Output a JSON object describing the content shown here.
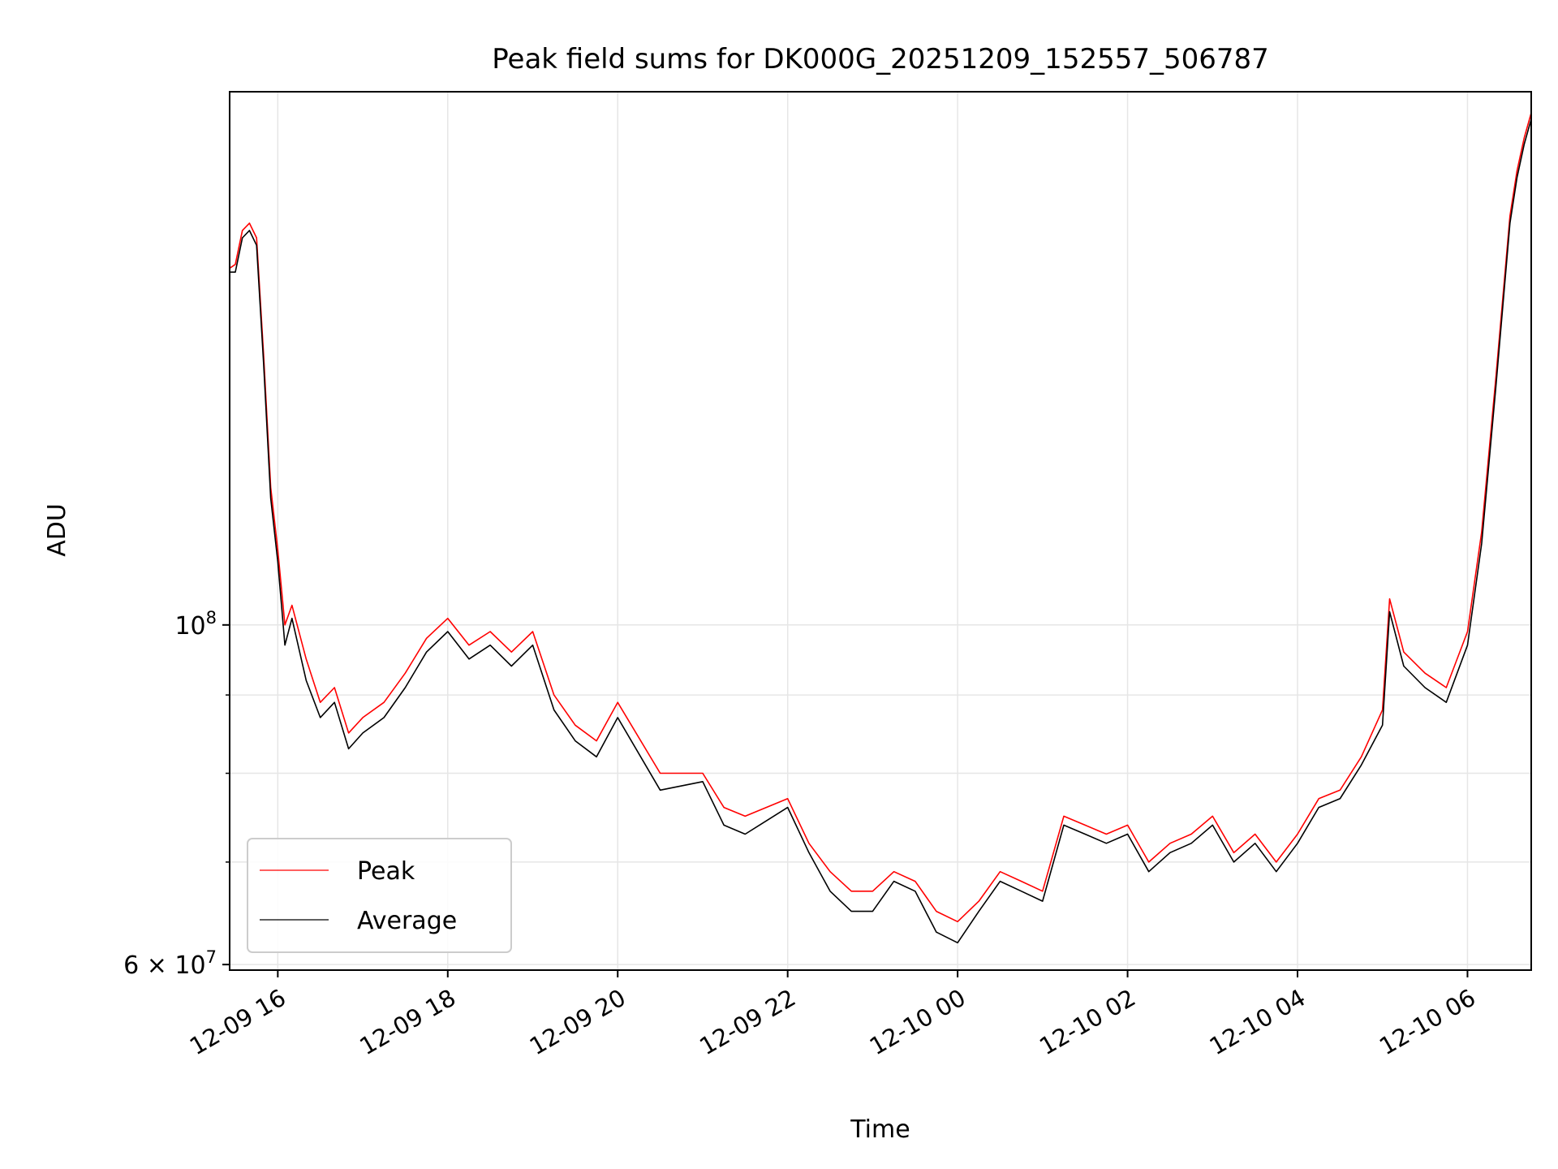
{
  "chart_data": {
    "type": "line",
    "title": "Peak field sums for DK000G_20251209_152557_506787",
    "xlabel": "Time",
    "ylabel": "ADU",
    "y_scale": "log",
    "xlim": [
      "2025-12-09 15:26",
      "2025-12-10 06:45"
    ],
    "ylim": [
      59500000,
      223000000
    ],
    "x_ticks": [
      "2025-12-09 16:00",
      "2025-12-09 18:00",
      "2025-12-09 20:00",
      "2025-12-09 22:00",
      "2025-12-10 00:00",
      "2025-12-10 02:00",
      "2025-12-10 04:00",
      "2025-12-10 06:00"
    ],
    "x_tick_labels": [
      "12-09 16",
      "12-09 18",
      "12-09 20",
      "12-09 22",
      "12-10 00",
      "12-10 02",
      "12-10 04",
      "12-10 06"
    ],
    "y_tick_labels": [
      {
        "value": 100000000,
        "mantissa": "10",
        "exponent": "8"
      },
      {
        "value": 60000000,
        "mantissa": "6 × 10",
        "exponent": "7"
      }
    ],
    "y_minor_grid": [
      70000000,
      80000000,
      90000000
    ],
    "grid": true,
    "legend_position": "lower-left",
    "x": [
      "2025-12-09 15:26",
      "2025-12-09 15:30",
      "2025-12-09 15:35",
      "2025-12-09 15:40",
      "2025-12-09 15:45",
      "2025-12-09 15:50",
      "2025-12-09 15:55",
      "2025-12-09 16:00",
      "2025-12-09 16:05",
      "2025-12-09 16:10",
      "2025-12-09 16:20",
      "2025-12-09 16:30",
      "2025-12-09 16:40",
      "2025-12-09 16:50",
      "2025-12-09 17:00",
      "2025-12-09 17:15",
      "2025-12-09 17:30",
      "2025-12-09 17:45",
      "2025-12-09 18:00",
      "2025-12-09 18:15",
      "2025-12-09 18:30",
      "2025-12-09 18:45",
      "2025-12-09 19:00",
      "2025-12-09 19:15",
      "2025-12-09 19:30",
      "2025-12-09 19:45",
      "2025-12-09 20:00",
      "2025-12-09 20:30",
      "2025-12-09 21:00",
      "2025-12-09 21:15",
      "2025-12-09 21:30",
      "2025-12-09 22:00",
      "2025-12-09 22:15",
      "2025-12-09 22:30",
      "2025-12-09 22:45",
      "2025-12-09 23:00",
      "2025-12-09 23:15",
      "2025-12-09 23:30",
      "2025-12-09 23:45",
      "2025-12-10 00:00",
      "2025-12-10 00:15",
      "2025-12-10 00:30",
      "2025-12-10 00:45",
      "2025-12-10 01:00",
      "2025-12-10 01:15",
      "2025-12-10 01:30",
      "2025-12-10 01:45",
      "2025-12-10 02:00",
      "2025-12-10 02:15",
      "2025-12-10 02:30",
      "2025-12-10 02:45",
      "2025-12-10 03:00",
      "2025-12-10 03:15",
      "2025-12-10 03:30",
      "2025-12-10 03:45",
      "2025-12-10 04:00",
      "2025-12-10 04:15",
      "2025-12-10 04:30",
      "2025-12-10 04:45",
      "2025-12-10 05:00",
      "2025-12-10 05:05",
      "2025-12-10 05:15",
      "2025-12-10 05:30",
      "2025-12-10 05:45",
      "2025-12-10 06:00",
      "2025-12-10 06:10",
      "2025-12-10 06:20",
      "2025-12-10 06:30",
      "2025-12-10 06:35",
      "2025-12-10 06:40",
      "2025-12-10 06:45"
    ],
    "series": [
      {
        "name": "Peak",
        "color": "#ff0000",
        "values": [
          171000000,
          172000000,
          181000000,
          183000000,
          179000000,
          150000000,
          123000000,
          112000000,
          100000000,
          103000000,
          95000000,
          89000000,
          91000000,
          85000000,
          87000000,
          89000000,
          93000000,
          98000000,
          101000000,
          97000000,
          99000000,
          96000000,
          99000000,
          90000000,
          86000000,
          84000000,
          89000000,
          80000000,
          80000000,
          76000000,
          75000000,
          77000000,
          72000000,
          69000000,
          67000000,
          67000000,
          69000000,
          68000000,
          65000000,
          64000000,
          66000000,
          69000000,
          68000000,
          67000000,
          75000000,
          74000000,
          73000000,
          74000000,
          70000000,
          72000000,
          73000000,
          75000000,
          71000000,
          73000000,
          70000000,
          73000000,
          77000000,
          78000000,
          82000000,
          88000000,
          104000000,
          96000000,
          93000000,
          91000000,
          99000000,
          115000000,
          145000000,
          185000000,
          198000000,
          208000000,
          216000000
        ]
      },
      {
        "name": "Average",
        "color": "#000000",
        "values": [
          170000000,
          170000000,
          179000000,
          181000000,
          177000000,
          148000000,
          121000000,
          110000000,
          97000000,
          101000000,
          92000000,
          87000000,
          89000000,
          83000000,
          85000000,
          87000000,
          91000000,
          96000000,
          99000000,
          95000000,
          97000000,
          94000000,
          97000000,
          88000000,
          84000000,
          82000000,
          87000000,
          78000000,
          79000000,
          74000000,
          73000000,
          76000000,
          71000000,
          67000000,
          65000000,
          65000000,
          68000000,
          67000000,
          63000000,
          62000000,
          65000000,
          68000000,
          67000000,
          66000000,
          74000000,
          73000000,
          72000000,
          73000000,
          69000000,
          71000000,
          72000000,
          74000000,
          70000000,
          72000000,
          69000000,
          72000000,
          76000000,
          77000000,
          81000000,
          86000000,
          102000000,
          94000000,
          91000000,
          89000000,
          97000000,
          113000000,
          143000000,
          183000000,
          196000000,
          206000000,
          214000000
        ]
      }
    ]
  }
}
